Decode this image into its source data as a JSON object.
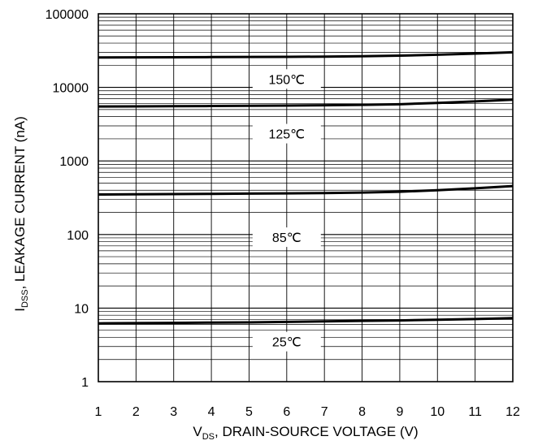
{
  "chart_data": {
    "type": "line",
    "xlabel": {
      "main": "V",
      "sub": "DS",
      "rest": ", DRAIN-SOURCE VOLTAGE (V)"
    },
    "ylabel": {
      "main": "I",
      "sub": "DSS",
      "rest": ", LEAKAGE CURRENT (nA)"
    },
    "xlim": [
      1,
      12
    ],
    "ylim": [
      1,
      100000
    ],
    "yscale": "log",
    "grid": true,
    "x_ticks": [
      1,
      2,
      3,
      4,
      5,
      6,
      7,
      8,
      9,
      10,
      11,
      12
    ],
    "x_tick_labels": [
      "1",
      "2",
      "3",
      "4",
      "5",
      "6",
      "7",
      "8",
      "9",
      "10",
      "11",
      "12"
    ],
    "y_ticks": [
      1,
      10,
      100,
      1000,
      10000,
      100000
    ],
    "y_tick_labels": [
      "1",
      "10",
      "100",
      "1000",
      "10000",
      "100000"
    ],
    "series": [
      {
        "name": "150℃",
        "label_at": {
          "x": 6,
          "y": 13000
        },
        "points": [
          [
            1,
            25500
          ],
          [
            2,
            25600
          ],
          [
            3,
            25700
          ],
          [
            4,
            25800
          ],
          [
            5,
            25900
          ],
          [
            6,
            26000
          ],
          [
            7,
            26200
          ],
          [
            8,
            26500
          ],
          [
            9,
            27000
          ],
          [
            10,
            27800
          ],
          [
            11,
            28800
          ],
          [
            12,
            30000
          ]
        ]
      },
      {
        "name": "125℃",
        "label_at": {
          "x": 6,
          "y": 2350
        },
        "points": [
          [
            1,
            5500
          ],
          [
            2,
            5520
          ],
          [
            3,
            5550
          ],
          [
            4,
            5580
          ],
          [
            5,
            5620
          ],
          [
            6,
            5660
          ],
          [
            7,
            5710
          ],
          [
            8,
            5780
          ],
          [
            9,
            5900
          ],
          [
            10,
            6150
          ],
          [
            11,
            6450
          ],
          [
            12,
            6800
          ]
        ]
      },
      {
        "name": "85℃",
        "label_at": {
          "x": 6,
          "y": 92
        },
        "points": [
          [
            1,
            350
          ],
          [
            2,
            352
          ],
          [
            3,
            355
          ],
          [
            4,
            357
          ],
          [
            5,
            360
          ],
          [
            6,
            363
          ],
          [
            7,
            366
          ],
          [
            8,
            372
          ],
          [
            9,
            382
          ],
          [
            10,
            400
          ],
          [
            11,
            425
          ],
          [
            12,
            455
          ]
        ]
      },
      {
        "name": "25℃",
        "label_at": {
          "x": 6,
          "y": 3.5
        },
        "points": [
          [
            1,
            6.2
          ],
          [
            2,
            6.25
          ],
          [
            3,
            6.3
          ],
          [
            4,
            6.35
          ],
          [
            5,
            6.4
          ],
          [
            6,
            6.5
          ],
          [
            7,
            6.6
          ],
          [
            8,
            6.7
          ],
          [
            9,
            6.8
          ],
          [
            10,
            6.95
          ],
          [
            11,
            7.1
          ],
          [
            12,
            7.3
          ]
        ]
      }
    ]
  }
}
